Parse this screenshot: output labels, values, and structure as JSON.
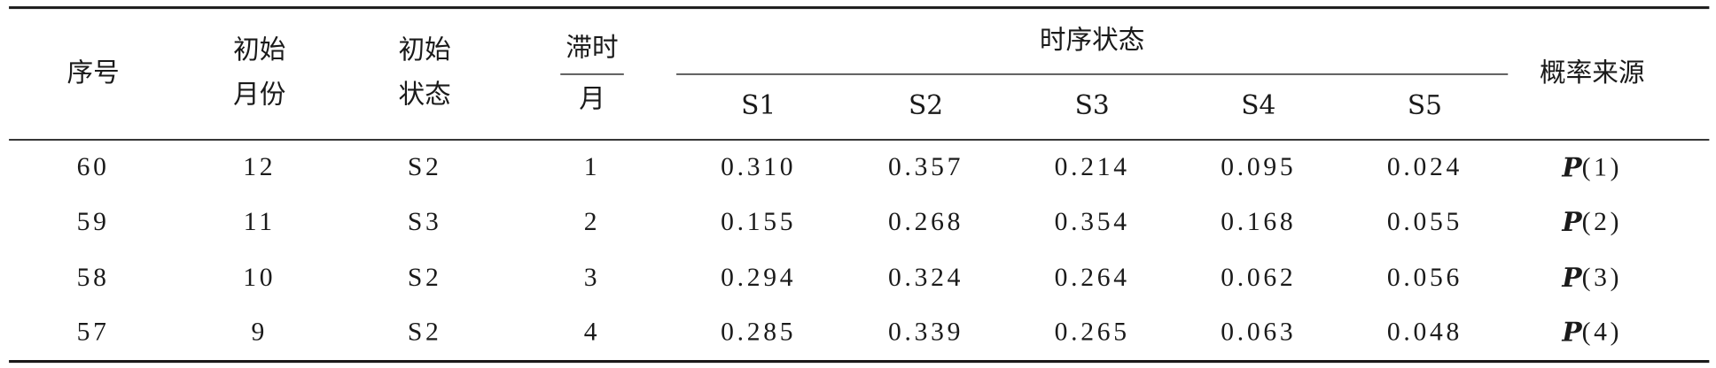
{
  "table": {
    "header": {
      "index": [
        "序号"
      ],
      "month": [
        "初始",
        "月份"
      ],
      "state": [
        "初始",
        "状态"
      ],
      "lag": {
        "top": "滞时",
        "bottom": "月"
      },
      "group": "时序状态",
      "states": [
        "S1",
        "S2",
        "S3",
        "S4",
        "S5"
      ],
      "source": [
        "概率来源"
      ]
    },
    "rows": [
      [
        "60",
        "12",
        "S2",
        "1",
        "0.310",
        "0.357",
        "0.214",
        "0.095",
        "0.024",
        {
          "symbol": "P",
          "arg": "(1)"
        }
      ],
      [
        "59",
        "11",
        "S3",
        "2",
        "0.155",
        "0.268",
        "0.354",
        "0.168",
        "0.055",
        {
          "symbol": "P",
          "arg": "(2)"
        }
      ],
      [
        "58",
        "10",
        "S2",
        "3",
        "0.294",
        "0.324",
        "0.264",
        "0.062",
        "0.056",
        {
          "symbol": "P",
          "arg": "(3)"
        }
      ],
      [
        "57",
        "9",
        "S2",
        "4",
        "0.285",
        "0.339",
        "0.265",
        "0.063",
        "0.048",
        {
          "symbol": "P",
          "arg": "(4)"
        }
      ]
    ]
  }
}
